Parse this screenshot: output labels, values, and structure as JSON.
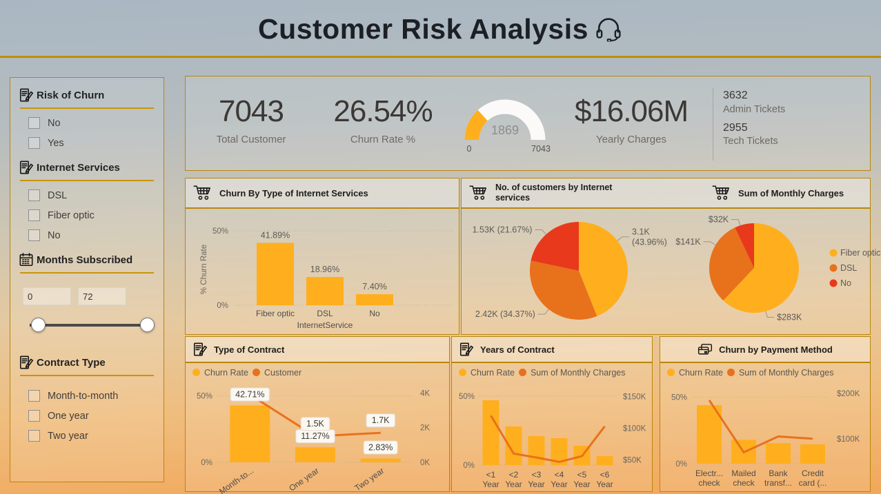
{
  "title": "Customer Risk Analysis",
  "colors": {
    "amber": "#FFAF1D",
    "orange": "#E8711C",
    "red": "#E8391C",
    "gold": "#B8860B",
    "dark": "#252423",
    "gray": "#605E5C"
  },
  "sidebar": {
    "risk": {
      "title": "Risk of Churn",
      "options": [
        "No",
        "Yes"
      ]
    },
    "internet": {
      "title": "Internet Services",
      "options": [
        "DSL",
        "Fiber optic",
        "No"
      ]
    },
    "months": {
      "title": "Months Subscribed",
      "min": "0",
      "max": "72"
    },
    "contract": {
      "title": "Contract Type",
      "options": [
        "Month-to-month",
        "One year",
        "Two year"
      ]
    }
  },
  "kpis": {
    "total_customer": {
      "value": "7043",
      "label": "Total Customer"
    },
    "churn_rate": {
      "value": "26.54%",
      "label": "Churn Rate %"
    },
    "gauge": {
      "value": "1869",
      "min": "0",
      "max": "7043",
      "fraction": 0.2654
    },
    "yearly_charges": {
      "value": "$16.06M",
      "label": "Yearly Charges"
    },
    "admin_tickets": {
      "value": "3632",
      "label": "Admin Tickets"
    },
    "tech_tickets": {
      "value": "2955",
      "label": "Tech Tickets"
    }
  },
  "chart_data": [
    {
      "id": "churn_by_internet",
      "type": "bar",
      "title": "Churn By Type of Internet Services",
      "categories": [
        "Fiber optic",
        "DSL",
        "No"
      ],
      "values": [
        41.89,
        18.96,
        7.4
      ],
      "value_labels": [
        "41.89%",
        "18.96%",
        "7.40%"
      ],
      "xlabel": "InternetService",
      "ylabel": "% Churn Rate",
      "yticks": [
        {
          "label": "50%",
          "v": 50
        },
        {
          "label": "0%",
          "v": 0
        }
      ],
      "ylim": [
        0,
        57
      ]
    },
    {
      "id": "customers_by_internet",
      "type": "pie",
      "title": "No. of customers by Internet services",
      "slices": [
        {
          "name": "Fiber optic",
          "value": "3.1K",
          "pct": 43.96,
          "label": [
            "3.1K",
            "(43.96%)"
          ],
          "color": "amber",
          "la": -38
        },
        {
          "name": "DSL",
          "value": "2.42K",
          "pct": 34.37,
          "label": [
            "2.42K (34.37%)"
          ],
          "color": "orange",
          "la": 128
        },
        {
          "name": "No",
          "value": "1.53K",
          "pct": 21.67,
          "label": [
            "1.53K (21.67%)"
          ],
          "color": "red",
          "la": 228
        }
      ]
    },
    {
      "id": "monthly_charges",
      "type": "pie",
      "title": "Sum of Monthly Charges",
      "slices": [
        {
          "name": "Fiber optic",
          "value": "$283K",
          "pct": 62.06,
          "label": [
            "$283K"
          ],
          "color": "amber",
          "la": 75
        },
        {
          "name": "DSL",
          "value": "$141K",
          "pct": 30.92,
          "label": [
            "$141K"
          ],
          "color": "orange",
          "la": 211
        },
        {
          "name": "No",
          "value": "$32K",
          "pct": 7.02,
          "label": [
            "$32K"
          ],
          "color": "red",
          "la": 252
        }
      ],
      "legend": [
        "Fiber optic",
        "DSL",
        "No"
      ]
    },
    {
      "id": "type_of_contract",
      "type": "combo",
      "title": "Type of Contract",
      "legend": [
        {
          "name": "Churn Rate",
          "color": "amber"
        },
        {
          "name": "Customer",
          "color": "orange"
        }
      ],
      "categories": [
        "Month-to...",
        "One year",
        "Two year"
      ],
      "bars": [
        42.71,
        11.27,
        2.83
      ],
      "bar_labels": [
        "42.71%",
        "11.27%",
        "2.83%"
      ],
      "line": [
        3.9,
        1.5,
        1.7
      ],
      "line_labels": [
        null,
        "1.5K",
        "1.7K"
      ],
      "left_ticks": [
        {
          "label": "50%",
          "v": 50
        },
        {
          "label": "0%",
          "v": 0
        }
      ],
      "left_max": 58,
      "right_ticks": [
        {
          "label": "4K",
          "v": 4
        },
        {
          "label": "2K",
          "v": 2
        },
        {
          "label": "0K",
          "v": 0
        }
      ],
      "right_min": 0,
      "right_max": 4.45
    },
    {
      "id": "years_of_contract",
      "type": "combo",
      "title": "Years of Contract",
      "legend": [
        {
          "name": "Churn Rate",
          "color": "amber"
        },
        {
          "name": "Sum of Monthly Charges",
          "color": "orange"
        }
      ],
      "categories": [
        [
          "<1",
          "Year"
        ],
        [
          "<2",
          "Year"
        ],
        [
          "<3",
          "Year"
        ],
        [
          "<4",
          "Year"
        ],
        [
          "<5",
          "Year"
        ],
        [
          "<6",
          "Year"
        ]
      ],
      "bars": [
        47,
        28,
        21,
        19.5,
        14,
        6.5
      ],
      "line": [
        120,
        60,
        54,
        47,
        56,
        103
      ],
      "left_ticks": [
        {
          "label": "50%",
          "v": 50
        },
        {
          "label": "0%",
          "v": 0
        }
      ],
      "left_max": 58,
      "right_ticks": [
        {
          "label": "$150K",
          "v": 150
        },
        {
          "label": "$100K",
          "v": 100
        },
        {
          "label": "$50K",
          "v": 50
        }
      ],
      "right_min": 42,
      "right_max": 168
    },
    {
      "id": "churn_by_payment",
      "type": "combo",
      "title": "Churn by Payment Method",
      "legend": [
        {
          "name": "Churn Rate",
          "color": "amber"
        },
        {
          "name": "Sum of Monthly Charges",
          "color": "orange"
        }
      ],
      "categories": [
        [
          "Electr...",
          "check"
        ],
        [
          "Mailed",
          "check"
        ],
        [
          "Bank",
          "transf..."
        ],
        [
          "Credit",
          "card (..."
        ]
      ],
      "bars": [
        44,
        18,
        15.5,
        14.5
      ],
      "line": [
        185,
        70,
        105,
        100
      ],
      "left_ticks": [
        {
          "label": "50%",
          "v": 50
        },
        {
          "label": "0%",
          "v": 0
        }
      ],
      "left_max": 58,
      "right_ticks": [
        {
          "label": "$200K",
          "v": 200
        },
        {
          "label": "$100K",
          "v": 100
        }
      ],
      "right_min": 45,
      "right_max": 215
    }
  ]
}
